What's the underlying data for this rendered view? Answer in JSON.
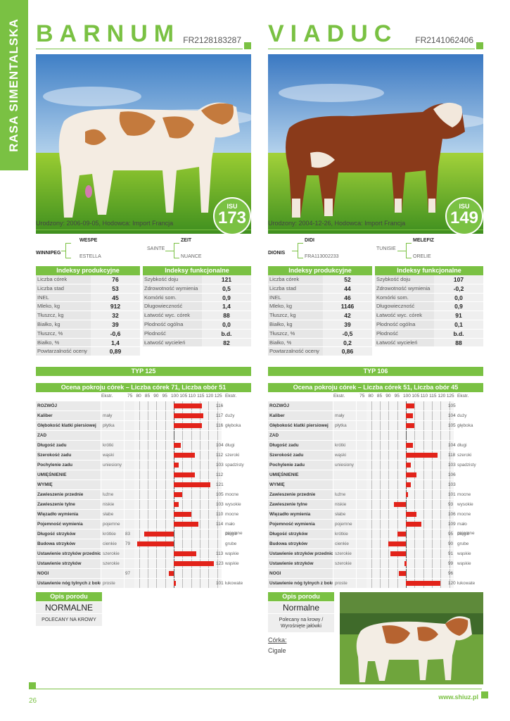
{
  "side_label": "RASA SIMENTALSKA",
  "page_number": "26",
  "url": "www.shiuz.pl",
  "scale_labels": [
    "Ekstr.",
    "75",
    "80",
    "85",
    "90",
    "95",
    "100",
    "105",
    "110",
    "115",
    "120",
    "125",
    "Ekstr."
  ],
  "bulls": [
    {
      "name": "BARNUM",
      "code": "FR2128183287",
      "isu_label": "ISU",
      "isu": "173",
      "born": "Urodzony: 2006-09-05, Hodowca: Import Francja",
      "pedigree": {
        "sire": "WINNIPEG",
        "sire_sire": "WESPE",
        "sire_dam": "ESTELLA",
        "dam_side": "SAINTE",
        "dam_sire": "ZEIT",
        "dam_dam": "NUANCE"
      },
      "prod_title": "Indeksy produkcyjne",
      "prod": [
        {
          "label": "Liczba córek",
          "value": "76"
        },
        {
          "label": "Liczba stad",
          "value": "53"
        },
        {
          "label": "INEL",
          "value": "45"
        },
        {
          "label": "Mleko, kg",
          "value": "912"
        },
        {
          "label": "Tłuszcz, kg",
          "value": "32"
        },
        {
          "label": "Białko, kg",
          "value": "39"
        },
        {
          "label": "Tłuszcz, %",
          "value": "-0,6"
        },
        {
          "label": "Białko, %",
          "value": "1,4"
        },
        {
          "label": "Powtarzalność oceny",
          "value": "0,89"
        }
      ],
      "func_title": "Indeksy funkcjonalne",
      "func": [
        {
          "label": "Szybkość doju",
          "value": "121"
        },
        {
          "label": "Zdrowotność wymienia",
          "value": "0,5"
        },
        {
          "label": "Komórki som.",
          "value": "0,9"
        },
        {
          "label": "Długowieczność",
          "value": "1,4"
        },
        {
          "label": "Łatwość wyc. córek",
          "value": "88"
        },
        {
          "label": "Płodność ogólna",
          "value": "0,0"
        },
        {
          "label": "Płodność",
          "value": "b.d."
        },
        {
          "label": "Łatwość wycieleń",
          "value": "82"
        }
      ],
      "typ": "TYP 125",
      "ocena_title": "Ocena pokroju córek – Liczba córek 71, Liczba obór 51",
      "traits": [
        {
          "label": "ROZWÓJ",
          "left": "",
          "lv": "",
          "value": 116,
          "right": ""
        },
        {
          "label": "Kaliber",
          "left": "mały",
          "lv": "",
          "value": 117,
          "right": "duży"
        },
        {
          "label": "Głębokość klatki piersiowej",
          "left": "płytka",
          "lv": "",
          "value": 116,
          "right": "głęboka"
        },
        {
          "label": "ZAD",
          "left": "",
          "lv": "",
          "value": null,
          "right": ""
        },
        {
          "label": "Długość zadu",
          "left": "krótki",
          "lv": "",
          "value": 104,
          "right": "długi"
        },
        {
          "label": "Szerokość zadu",
          "left": "wąski",
          "lv": "",
          "value": 112,
          "right": "szeroki"
        },
        {
          "label": "Pochylenie zadu",
          "left": "uniesiony",
          "lv": "",
          "value": 103,
          "right": "spadzisty"
        },
        {
          "label": "UMIĘŚNIENIE",
          "left": "",
          "lv": "",
          "value": 112,
          "right": ""
        },
        {
          "label": "WYMIĘ",
          "left": "",
          "lv": "",
          "value": 121,
          "right": ""
        },
        {
          "label": "Zawieszenie przednie",
          "left": "luźne",
          "lv": "",
          "value": 105,
          "right": "mocne"
        },
        {
          "label": "Zawieszenie tylne",
          "left": "niskie",
          "lv": "",
          "value": 103,
          "right": "wysokie"
        },
        {
          "label": "Więzadło wymienia",
          "left": "słabe",
          "lv": "",
          "value": 110,
          "right": "mocne"
        },
        {
          "label": "Pojemność wymienia",
          "left": "pojemne",
          "lv": "",
          "value": 114,
          "right": "mało pojemne"
        },
        {
          "label": "Długość strzyków",
          "left": "krótkie",
          "lv": "83",
          "value": 83,
          "right": "długie"
        },
        {
          "label": "Budowa strzyków",
          "left": "cienkie",
          "lv": "79",
          "value": 79,
          "right": "grube"
        },
        {
          "label": "Ustawienie strzyków przednich",
          "left": "szerokie",
          "lv": "",
          "value": 113,
          "right": "wąskie"
        },
        {
          "label": "Ustawienie strzyków",
          "left": "szerokie",
          "lv": "",
          "value": 123,
          "right": "wąskie"
        },
        {
          "label": "NOGI",
          "left": "",
          "lv": "97",
          "value": 97,
          "right": ""
        },
        {
          "label": "Ustawienie nóg tylnych z boku",
          "left": "proste",
          "lv": "",
          "value": 101,
          "right": "łukowate"
        }
      ],
      "opis_title": "Opis porodu",
      "opis_value": "NORMALNE",
      "opis_note": "POLECANY NA KROWY"
    },
    {
      "name": "VIADUC",
      "code": "FR2141062406",
      "isu_label": "ISU",
      "isu": "149",
      "born": "Urodzony: 2004-12-26, Hodowca: Import Francja",
      "pedigree": {
        "sire": "DIONIS",
        "sire_sire": "DIDI",
        "sire_dam": "FRA113002233",
        "dam_side": "TUNISIE",
        "dam_sire": "MELEFIZ",
        "dam_dam": "ORELIE"
      },
      "prod_title": "Indeksy produkcyjne",
      "prod": [
        {
          "label": "Liczba córek",
          "value": "52"
        },
        {
          "label": "Liczba stad",
          "value": "44"
        },
        {
          "label": "INEL",
          "value": "46"
        },
        {
          "label": "Mleko, kg",
          "value": "1146"
        },
        {
          "label": "Tłuszcz, kg",
          "value": "42"
        },
        {
          "label": "Białko, kg",
          "value": "39"
        },
        {
          "label": "Tłuszcz, %",
          "value": "-0,5"
        },
        {
          "label": "Białko, %",
          "value": "0,2"
        },
        {
          "label": "Powtarzalność oceny",
          "value": "0,86"
        }
      ],
      "func_title": "Indeksy funkcjonalne",
      "func": [
        {
          "label": "Szybkość doju",
          "value": "107"
        },
        {
          "label": "Zdrowotność wymienia",
          "value": "-0,2"
        },
        {
          "label": "Komórki som.",
          "value": "0,0"
        },
        {
          "label": "Długowieczność",
          "value": "0,9"
        },
        {
          "label": "Łatwość wyc. córek",
          "value": "91"
        },
        {
          "label": "Płodność ogólna",
          "value": "0,1"
        },
        {
          "label": "Płodność",
          "value": "b.d."
        },
        {
          "label": "Łatwość wycieleń",
          "value": "88"
        }
      ],
      "typ": "TYP 106",
      "ocena_title": "Ocena pokroju córek – Liczba córek 51, Liczba obór 45",
      "traits": [
        {
          "label": "ROZWÓJ",
          "left": "",
          "lv": "",
          "value": 105,
          "right": ""
        },
        {
          "label": "Kaliber",
          "left": "mały",
          "lv": "",
          "value": 104,
          "right": "duży"
        },
        {
          "label": "Głębokość klatki piersiowej",
          "left": "płytka",
          "lv": "",
          "value": 105,
          "right": "głęboka"
        },
        {
          "label": "ZAD",
          "left": "",
          "lv": "",
          "value": null,
          "right": ""
        },
        {
          "label": "Długość zadu",
          "left": "krótki",
          "lv": "",
          "value": 104,
          "right": "długi"
        },
        {
          "label": "Szerokość zadu",
          "left": "wąski",
          "lv": "",
          "value": 118,
          "right": "szeroki"
        },
        {
          "label": "Pochylenie zadu",
          "left": "uniesiony",
          "lv": "",
          "value": 103,
          "right": "spadzisty"
        },
        {
          "label": "UMIĘŚNIENIE",
          "left": "",
          "lv": "",
          "value": 106,
          "right": ""
        },
        {
          "label": "WYMIĘ",
          "left": "",
          "lv": "",
          "value": 103,
          "right": ""
        },
        {
          "label": "Zawieszenie przednie",
          "left": "luźne",
          "lv": "",
          "value": 101,
          "right": "mocne"
        },
        {
          "label": "Zawieszenie tylne",
          "left": "niskie",
          "lv": "",
          "value": 93,
          "right": "wysokie"
        },
        {
          "label": "Więzadło wymienia",
          "left": "słabe",
          "lv": "",
          "value": 106,
          "right": "mocne"
        },
        {
          "label": "Pojemność wymienia",
          "left": "pojemne",
          "lv": "",
          "value": 109,
          "right": "mało pojemne"
        },
        {
          "label": "Długość strzyków",
          "left": "krótkie",
          "lv": "",
          "value": 95,
          "right": "długie"
        },
        {
          "label": "Budowa strzyków",
          "left": "cienkie",
          "lv": "",
          "value": 90,
          "right": "grube"
        },
        {
          "label": "Ustawienie strzyków przednich",
          "left": "szerokie",
          "lv": "",
          "value": 91,
          "right": "wąskie"
        },
        {
          "label": "Ustawienie strzyków",
          "left": "szerokie",
          "lv": "",
          "value": 99,
          "right": "wąskie"
        },
        {
          "label": "NOGI",
          "left": "",
          "lv": "",
          "value": 96,
          "right": ""
        },
        {
          "label": "Ustawienie nóg tylnych z boku",
          "left": "proste",
          "lv": "",
          "value": 120,
          "right": "łukowate"
        }
      ],
      "opis_title": "Opis porodu",
      "opis_value": "Normalne",
      "opis_note": "Polecany na krowy / Wyrośnięte jałówki",
      "daughter_label": "Córka:",
      "daughter_name": "Cigale"
    }
  ],
  "colors": {
    "green": "#7ac143",
    "bar": "#e2231a"
  }
}
